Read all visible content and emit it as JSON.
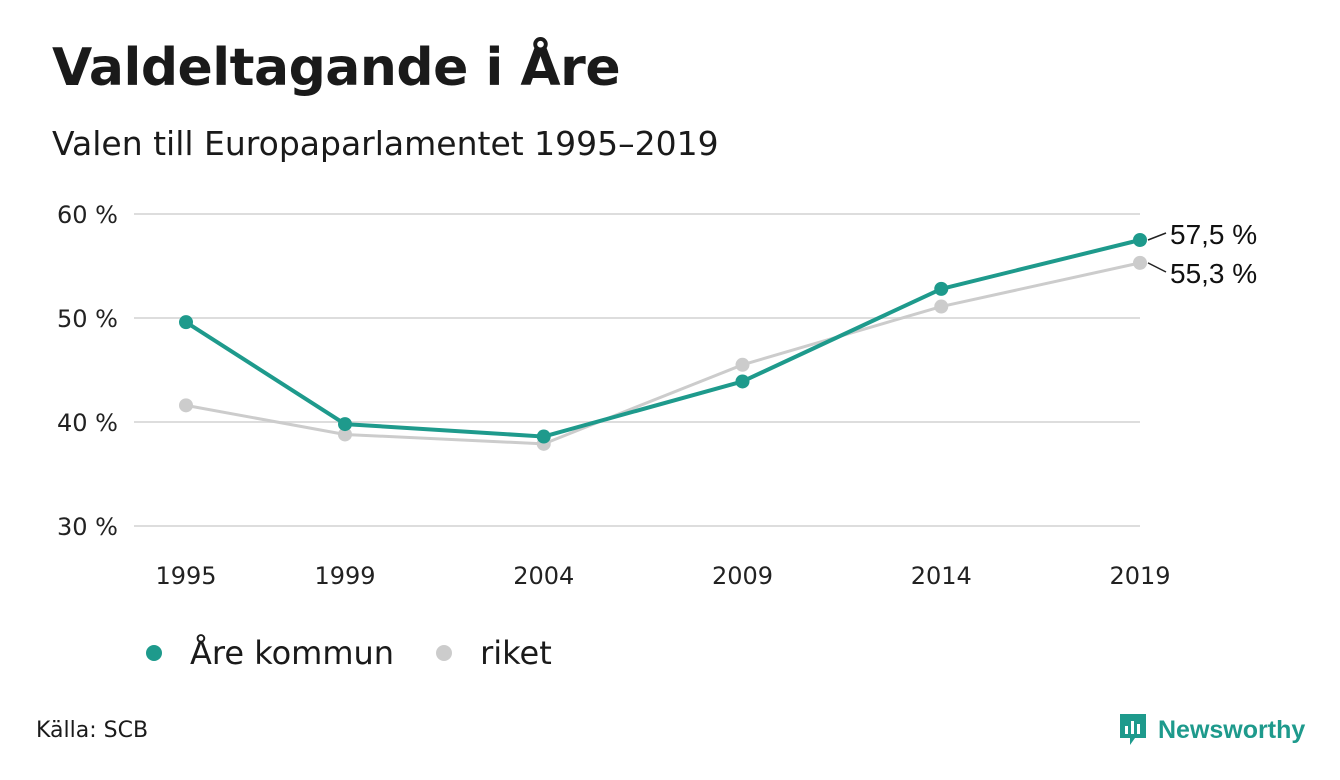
{
  "title": "Valdeltagande i Åre",
  "subtitle": "Valen till Europaparlamentet 1995–2019",
  "source": "Källa: SCB",
  "brand": {
    "name": "Newsworthy",
    "icon": "newsworthy-logo-icon",
    "color": "#1e9a8c"
  },
  "chart_data": {
    "type": "line",
    "categories": [
      "1995",
      "1999",
      "2004",
      "2009",
      "2014",
      "2019"
    ],
    "x": [
      1995,
      1999,
      2004,
      2009,
      2014,
      2019
    ],
    "ylim": [
      30,
      60
    ],
    "yticks": [
      30,
      40,
      50,
      60
    ],
    "ytick_labels": [
      "30 %",
      "40 %",
      "50 %",
      "60 %"
    ],
    "grid": true,
    "legend_position": "bottom-left",
    "series": [
      {
        "name": "Åre kommun",
        "color": "#1e9a8c",
        "values": [
          49.6,
          39.8,
          38.6,
          43.9,
          52.8,
          57.5
        ],
        "end_label": "57,5 %"
      },
      {
        "name": "riket",
        "color": "#cccccc",
        "values": [
          41.6,
          38.8,
          37.9,
          45.5,
          51.1,
          55.3
        ],
        "end_label": "55,3 %"
      }
    ]
  }
}
